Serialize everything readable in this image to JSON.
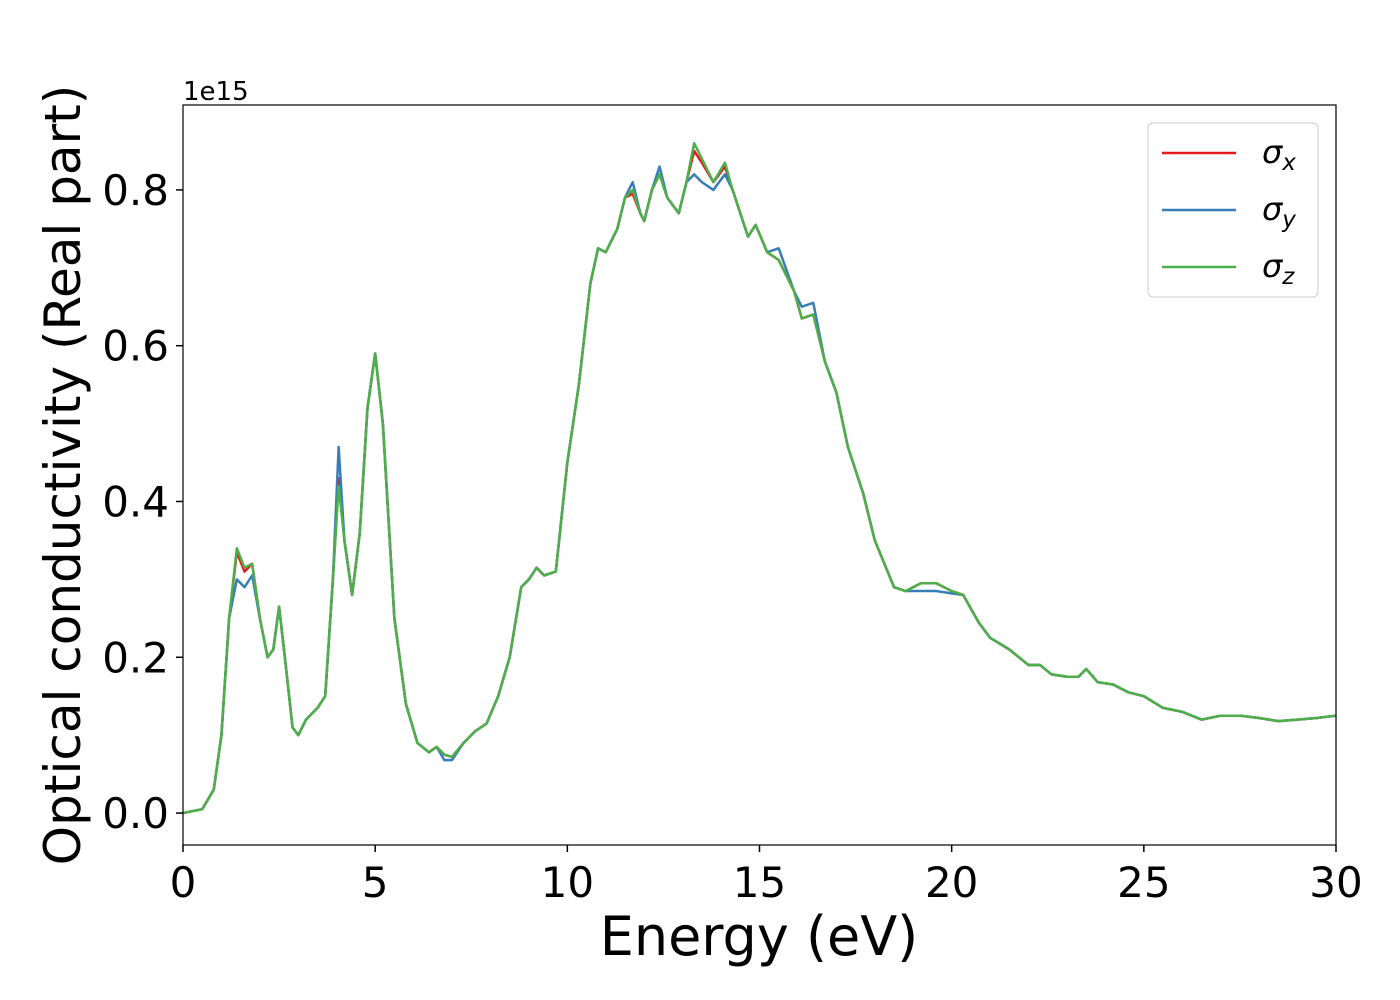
{
  "chart_data": {
    "type": "line",
    "ylabel": "Optical conductivity (Real part)",
    "xlabel": "Energy (eV)",
    "offset_label": "1e15",
    "x": [
      0,
      0.5,
      0.8,
      1.0,
      1.2,
      1.4,
      1.6,
      1.8,
      2.0,
      2.2,
      2.35,
      2.5,
      2.65,
      2.85,
      3.0,
      3.2,
      3.5,
      3.7,
      3.9,
      4.05,
      4.2,
      4.4,
      4.6,
      4.8,
      5.0,
      5.2,
      5.5,
      5.8,
      6.1,
      6.4,
      6.6,
      6.8,
      7.0,
      7.3,
      7.6,
      7.9,
      8.2,
      8.5,
      8.8,
      9.0,
      9.2,
      9.4,
      9.7,
      10.0,
      10.3,
      10.6,
      10.8,
      11.0,
      11.3,
      11.5,
      11.7,
      11.9,
      12.0,
      12.2,
      12.4,
      12.6,
      12.9,
      13.1,
      13.3,
      13.5,
      13.8,
      14.1,
      14.3,
      14.7,
      14.9,
      15.2,
      15.5,
      15.9,
      16.1,
      16.4,
      16.7,
      17.0,
      17.3,
      17.7,
      18.0,
      18.5,
      18.8,
      19.2,
      19.6,
      20.0,
      20.3,
      20.7,
      21.0,
      21.5,
      22.0,
      22.3,
      22.6,
      23.0,
      23.3,
      23.5,
      23.8,
      24.2,
      24.6,
      25.0,
      25.5,
      26.0,
      26.5,
      27.0,
      27.5,
      28.0,
      28.5,
      29.0,
      29.5,
      30.0
    ],
    "series": [
      {
        "name": "σx",
        "color": "#e41a1c",
        "values": [
          0,
          0.005,
          0.03,
          0.1,
          0.25,
          0.335,
          0.31,
          0.32,
          0.25,
          0.2,
          0.21,
          0.265,
          0.2,
          0.11,
          0.1,
          0.12,
          0.135,
          0.15,
          0.3,
          0.43,
          0.35,
          0.28,
          0.36,
          0.52,
          0.59,
          0.5,
          0.25,
          0.14,
          0.09,
          0.078,
          0.085,
          0.075,
          0.072,
          0.09,
          0.105,
          0.115,
          0.15,
          0.2,
          0.29,
          0.3,
          0.315,
          0.305,
          0.31,
          0.45,
          0.55,
          0.68,
          0.725,
          0.72,
          0.75,
          0.79,
          0.795,
          0.77,
          0.76,
          0.8,
          0.82,
          0.79,
          0.77,
          0.81,
          0.85,
          0.835,
          0.81,
          0.83,
          0.8,
          0.74,
          0.755,
          0.72,
          0.71,
          0.67,
          0.635,
          0.64,
          0.58,
          0.54,
          0.47,
          0.41,
          0.35,
          0.29,
          0.285,
          0.295,
          0.295,
          0.285,
          0.28,
          0.245,
          0.225,
          0.21,
          0.19,
          0.19,
          0.178,
          0.175,
          0.175,
          0.185,
          0.168,
          0.165,
          0.155,
          0.15,
          0.135,
          0.13,
          0.12,
          0.125,
          0.125,
          0.122,
          0.118,
          0.12,
          0.122,
          0.125
        ]
      },
      {
        "name": "σy",
        "color": "#377eb8",
        "values": [
          0,
          0.005,
          0.03,
          0.1,
          0.25,
          0.3,
          0.29,
          0.305,
          0.25,
          0.2,
          0.21,
          0.265,
          0.2,
          0.11,
          0.1,
          0.12,
          0.135,
          0.15,
          0.3,
          0.47,
          0.35,
          0.28,
          0.36,
          0.52,
          0.59,
          0.5,
          0.25,
          0.14,
          0.09,
          0.078,
          0.085,
          0.068,
          0.068,
          0.09,
          0.105,
          0.115,
          0.15,
          0.2,
          0.29,
          0.3,
          0.315,
          0.305,
          0.31,
          0.45,
          0.55,
          0.68,
          0.725,
          0.72,
          0.75,
          0.79,
          0.81,
          0.77,
          0.76,
          0.8,
          0.83,
          0.79,
          0.77,
          0.81,
          0.82,
          0.81,
          0.8,
          0.82,
          0.8,
          0.74,
          0.755,
          0.72,
          0.725,
          0.67,
          0.65,
          0.655,
          0.58,
          0.54,
          0.47,
          0.41,
          0.35,
          0.29,
          0.285,
          0.285,
          0.285,
          0.282,
          0.28,
          0.245,
          0.225,
          0.21,
          0.19,
          0.19,
          0.178,
          0.175,
          0.175,
          0.185,
          0.168,
          0.165,
          0.155,
          0.15,
          0.135,
          0.13,
          0.12,
          0.125,
          0.125,
          0.122,
          0.118,
          0.12,
          0.122,
          0.125
        ]
      },
      {
        "name": "σz",
        "color": "#4daf4a",
        "values": [
          0,
          0.005,
          0.03,
          0.1,
          0.25,
          0.34,
          0.315,
          0.32,
          0.25,
          0.2,
          0.21,
          0.265,
          0.2,
          0.11,
          0.1,
          0.12,
          0.135,
          0.15,
          0.3,
          0.42,
          0.35,
          0.28,
          0.36,
          0.52,
          0.59,
          0.5,
          0.25,
          0.14,
          0.09,
          0.078,
          0.085,
          0.075,
          0.072,
          0.09,
          0.105,
          0.115,
          0.15,
          0.2,
          0.29,
          0.3,
          0.315,
          0.305,
          0.31,
          0.45,
          0.55,
          0.68,
          0.725,
          0.72,
          0.75,
          0.79,
          0.8,
          0.77,
          0.76,
          0.8,
          0.82,
          0.79,
          0.77,
          0.81,
          0.86,
          0.84,
          0.81,
          0.835,
          0.8,
          0.74,
          0.755,
          0.72,
          0.71,
          0.67,
          0.635,
          0.64,
          0.58,
          0.54,
          0.47,
          0.41,
          0.35,
          0.29,
          0.285,
          0.295,
          0.295,
          0.285,
          0.28,
          0.245,
          0.225,
          0.21,
          0.19,
          0.19,
          0.178,
          0.175,
          0.175,
          0.185,
          0.168,
          0.165,
          0.155,
          0.15,
          0.135,
          0.13,
          0.12,
          0.125,
          0.125,
          0.122,
          0.118,
          0.12,
          0.122,
          0.125
        ]
      }
    ],
    "xlim": [
      0,
      30
    ],
    "xticks": [
      0,
      5,
      10,
      15,
      20,
      25,
      30
    ],
    "ylim": [
      -0.041,
      0.909
    ],
    "yticks": [
      {
        "value": 0,
        "label": "0.0"
      },
      0.2,
      0.4,
      0.6,
      0.8
    ],
    "legend": "upper right"
  }
}
